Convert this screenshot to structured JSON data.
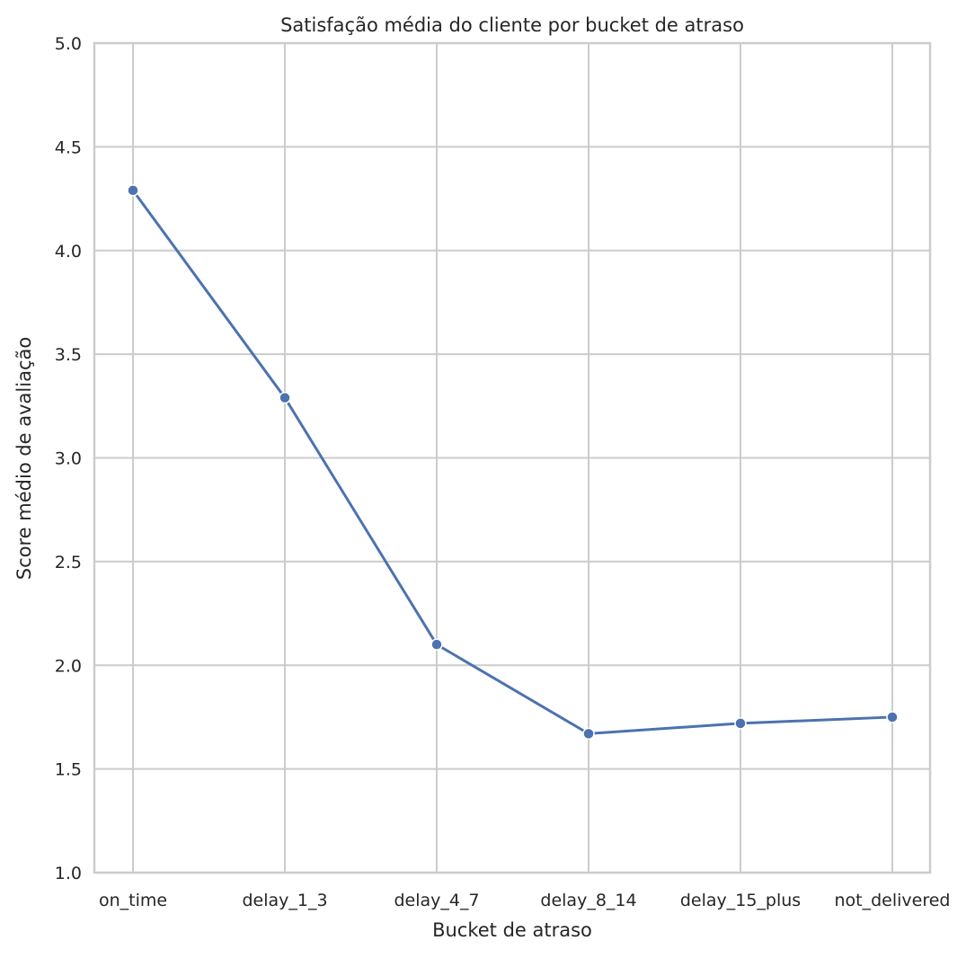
{
  "chart_data": {
    "type": "line",
    "title": "Satisfação média do cliente por bucket de atraso",
    "xlabel": "Bucket de atraso",
    "ylabel": "Score médio de avaliação",
    "categories": [
      "on_time",
      "delay_1_3",
      "delay_4_7",
      "delay_8_14",
      "delay_15_plus",
      "not_delivered"
    ],
    "values": [
      4.29,
      3.29,
      2.1,
      1.67,
      1.72,
      1.75
    ],
    "ylim": [
      1.0,
      5.0
    ],
    "yticks": [
      "1.0",
      "1.5",
      "2.0",
      "2.5",
      "3.0",
      "3.5",
      "4.0",
      "4.5",
      "5.0"
    ],
    "grid": true,
    "marker": "circle",
    "color": "#4c72b0",
    "grid_color": "#cccccc"
  }
}
